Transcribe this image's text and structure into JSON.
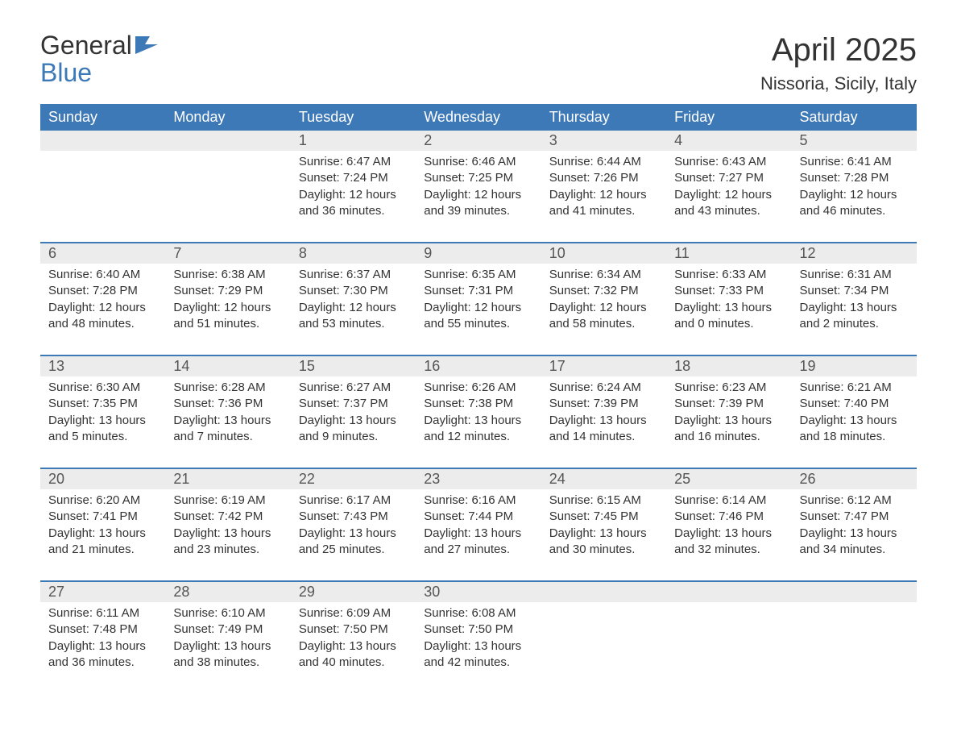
{
  "logo": {
    "line1": "General",
    "line2": "Blue",
    "accent_color": "#3d78b7"
  },
  "title": "April 2025",
  "location": "Nissoria, Sicily, Italy",
  "header_bg": "#3d78b7",
  "header_fg": "#ffffff",
  "daynum_bg": "#ececec",
  "text_color": "#333333",
  "weekdays": [
    "Sunday",
    "Monday",
    "Tuesday",
    "Wednesday",
    "Thursday",
    "Friday",
    "Saturday"
  ],
  "weeks": [
    [
      null,
      null,
      {
        "n": "1",
        "sr": "Sunrise: 6:47 AM",
        "ss": "Sunset: 7:24 PM",
        "d1": "Daylight: 12 hours",
        "d2": "and 36 minutes."
      },
      {
        "n": "2",
        "sr": "Sunrise: 6:46 AM",
        "ss": "Sunset: 7:25 PM",
        "d1": "Daylight: 12 hours",
        "d2": "and 39 minutes."
      },
      {
        "n": "3",
        "sr": "Sunrise: 6:44 AM",
        "ss": "Sunset: 7:26 PM",
        "d1": "Daylight: 12 hours",
        "d2": "and 41 minutes."
      },
      {
        "n": "4",
        "sr": "Sunrise: 6:43 AM",
        "ss": "Sunset: 7:27 PM",
        "d1": "Daylight: 12 hours",
        "d2": "and 43 minutes."
      },
      {
        "n": "5",
        "sr": "Sunrise: 6:41 AM",
        "ss": "Sunset: 7:28 PM",
        "d1": "Daylight: 12 hours",
        "d2": "and 46 minutes."
      }
    ],
    [
      {
        "n": "6",
        "sr": "Sunrise: 6:40 AM",
        "ss": "Sunset: 7:28 PM",
        "d1": "Daylight: 12 hours",
        "d2": "and 48 minutes."
      },
      {
        "n": "7",
        "sr": "Sunrise: 6:38 AM",
        "ss": "Sunset: 7:29 PM",
        "d1": "Daylight: 12 hours",
        "d2": "and 51 minutes."
      },
      {
        "n": "8",
        "sr": "Sunrise: 6:37 AM",
        "ss": "Sunset: 7:30 PM",
        "d1": "Daylight: 12 hours",
        "d2": "and 53 minutes."
      },
      {
        "n": "9",
        "sr": "Sunrise: 6:35 AM",
        "ss": "Sunset: 7:31 PM",
        "d1": "Daylight: 12 hours",
        "d2": "and 55 minutes."
      },
      {
        "n": "10",
        "sr": "Sunrise: 6:34 AM",
        "ss": "Sunset: 7:32 PM",
        "d1": "Daylight: 12 hours",
        "d2": "and 58 minutes."
      },
      {
        "n": "11",
        "sr": "Sunrise: 6:33 AM",
        "ss": "Sunset: 7:33 PM",
        "d1": "Daylight: 13 hours",
        "d2": "and 0 minutes."
      },
      {
        "n": "12",
        "sr": "Sunrise: 6:31 AM",
        "ss": "Sunset: 7:34 PM",
        "d1": "Daylight: 13 hours",
        "d2": "and 2 minutes."
      }
    ],
    [
      {
        "n": "13",
        "sr": "Sunrise: 6:30 AM",
        "ss": "Sunset: 7:35 PM",
        "d1": "Daylight: 13 hours",
        "d2": "and 5 minutes."
      },
      {
        "n": "14",
        "sr": "Sunrise: 6:28 AM",
        "ss": "Sunset: 7:36 PM",
        "d1": "Daylight: 13 hours",
        "d2": "and 7 minutes."
      },
      {
        "n": "15",
        "sr": "Sunrise: 6:27 AM",
        "ss": "Sunset: 7:37 PM",
        "d1": "Daylight: 13 hours",
        "d2": "and 9 minutes."
      },
      {
        "n": "16",
        "sr": "Sunrise: 6:26 AM",
        "ss": "Sunset: 7:38 PM",
        "d1": "Daylight: 13 hours",
        "d2": "and 12 minutes."
      },
      {
        "n": "17",
        "sr": "Sunrise: 6:24 AM",
        "ss": "Sunset: 7:39 PM",
        "d1": "Daylight: 13 hours",
        "d2": "and 14 minutes."
      },
      {
        "n": "18",
        "sr": "Sunrise: 6:23 AM",
        "ss": "Sunset: 7:39 PM",
        "d1": "Daylight: 13 hours",
        "d2": "and 16 minutes."
      },
      {
        "n": "19",
        "sr": "Sunrise: 6:21 AM",
        "ss": "Sunset: 7:40 PM",
        "d1": "Daylight: 13 hours",
        "d2": "and 18 minutes."
      }
    ],
    [
      {
        "n": "20",
        "sr": "Sunrise: 6:20 AM",
        "ss": "Sunset: 7:41 PM",
        "d1": "Daylight: 13 hours",
        "d2": "and 21 minutes."
      },
      {
        "n": "21",
        "sr": "Sunrise: 6:19 AM",
        "ss": "Sunset: 7:42 PM",
        "d1": "Daylight: 13 hours",
        "d2": "and 23 minutes."
      },
      {
        "n": "22",
        "sr": "Sunrise: 6:17 AM",
        "ss": "Sunset: 7:43 PM",
        "d1": "Daylight: 13 hours",
        "d2": "and 25 minutes."
      },
      {
        "n": "23",
        "sr": "Sunrise: 6:16 AM",
        "ss": "Sunset: 7:44 PM",
        "d1": "Daylight: 13 hours",
        "d2": "and 27 minutes."
      },
      {
        "n": "24",
        "sr": "Sunrise: 6:15 AM",
        "ss": "Sunset: 7:45 PM",
        "d1": "Daylight: 13 hours",
        "d2": "and 30 minutes."
      },
      {
        "n": "25",
        "sr": "Sunrise: 6:14 AM",
        "ss": "Sunset: 7:46 PM",
        "d1": "Daylight: 13 hours",
        "d2": "and 32 minutes."
      },
      {
        "n": "26",
        "sr": "Sunrise: 6:12 AM",
        "ss": "Sunset: 7:47 PM",
        "d1": "Daylight: 13 hours",
        "d2": "and 34 minutes."
      }
    ],
    [
      {
        "n": "27",
        "sr": "Sunrise: 6:11 AM",
        "ss": "Sunset: 7:48 PM",
        "d1": "Daylight: 13 hours",
        "d2": "and 36 minutes."
      },
      {
        "n": "28",
        "sr": "Sunrise: 6:10 AM",
        "ss": "Sunset: 7:49 PM",
        "d1": "Daylight: 13 hours",
        "d2": "and 38 minutes."
      },
      {
        "n": "29",
        "sr": "Sunrise: 6:09 AM",
        "ss": "Sunset: 7:50 PM",
        "d1": "Daylight: 13 hours",
        "d2": "and 40 minutes."
      },
      {
        "n": "30",
        "sr": "Sunrise: 6:08 AM",
        "ss": "Sunset: 7:50 PM",
        "d1": "Daylight: 13 hours",
        "d2": "and 42 minutes."
      },
      null,
      null,
      null
    ]
  ]
}
